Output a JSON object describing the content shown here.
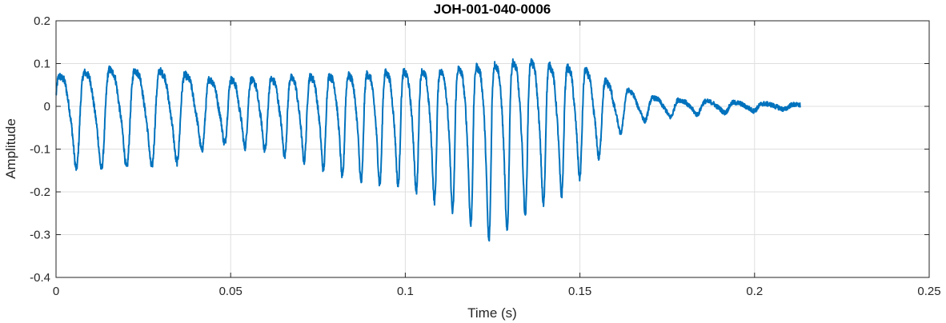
{
  "chart_data": {
    "type": "line",
    "title": "JOH-001-040-0006",
    "xlabel": "Time (s)",
    "ylabel": "Amplitude",
    "xlim": [
      0,
      0.25
    ],
    "ylim": [
      -0.4,
      0.2
    ],
    "x_ticks": [
      0,
      0.05,
      0.1,
      0.15,
      0.2,
      0.25
    ],
    "x_tick_labels": [
      "0",
      "0.05",
      "0.1",
      "0.15",
      "0.2",
      "0.25"
    ],
    "y_ticks": [
      -0.4,
      -0.3,
      -0.2,
      -0.1,
      0,
      0.1,
      0.2
    ],
    "y_tick_labels": [
      "-0.4",
      "-0.3",
      "-0.2",
      "-0.1",
      "0",
      "0.1",
      "0.2"
    ],
    "grid": true,
    "colors": {
      "series": "#0072BD",
      "grid": "#dfdfdf",
      "axes": "#262626"
    },
    "series": [
      {
        "signal_duration": 0.2131,
        "envelope_positive": [
          [
            0,
            0.1
          ],
          [
            0.005,
            0.11
          ],
          [
            0.015,
            0.125
          ],
          [
            0.03,
            0.12
          ],
          [
            0.038,
            0.105
          ],
          [
            0.045,
            0.09
          ],
          [
            0.06,
            0.09
          ],
          [
            0.07,
            0.1
          ],
          [
            0.085,
            0.105
          ],
          [
            0.095,
            0.115
          ],
          [
            0.11,
            0.12
          ],
          [
            0.125,
            0.14
          ],
          [
            0.135,
            0.155
          ],
          [
            0.145,
            0.13
          ],
          [
            0.15,
            0.135
          ],
          [
            0.155,
            0.1
          ],
          [
            0.16,
            0.07
          ],
          [
            0.165,
            0.05
          ],
          [
            0.17,
            0.03
          ],
          [
            0.18,
            0.02
          ],
          [
            0.19,
            0.015
          ],
          [
            0.2,
            0.01
          ],
          [
            0.213,
            0.005
          ]
        ],
        "envelope_negative": [
          [
            0,
            -0.165
          ],
          [
            0.005,
            -0.14
          ],
          [
            0.015,
            -0.14
          ],
          [
            0.03,
            -0.135
          ],
          [
            0.038,
            -0.12
          ],
          [
            0.045,
            -0.08
          ],
          [
            0.06,
            -0.1
          ],
          [
            0.07,
            -0.12
          ],
          [
            0.085,
            -0.17
          ],
          [
            0.1,
            -0.18
          ],
          [
            0.11,
            -0.22
          ],
          [
            0.118,
            -0.26
          ],
          [
            0.123,
            -0.305
          ],
          [
            0.128,
            -0.29
          ],
          [
            0.133,
            -0.25
          ],
          [
            0.14,
            -0.22
          ],
          [
            0.145,
            -0.2
          ],
          [
            0.15,
            -0.16
          ],
          [
            0.155,
            -0.12
          ],
          [
            0.16,
            -0.07
          ],
          [
            0.165,
            -0.04
          ],
          [
            0.17,
            -0.03
          ],
          [
            0.18,
            -0.02
          ],
          [
            0.19,
            -0.015
          ],
          [
            0.2,
            -0.01
          ],
          [
            0.213,
            -0.005
          ]
        ],
        "period_profile": [
          [
            0,
            0.0072
          ],
          [
            0.04,
            0.0072
          ],
          [
            0.05,
            0.0058
          ],
          [
            0.1,
            0.0052
          ],
          [
            0.15,
            0.0052
          ],
          [
            0.165,
            0.007
          ],
          [
            0.213,
            0.009
          ]
        ]
      }
    ]
  }
}
